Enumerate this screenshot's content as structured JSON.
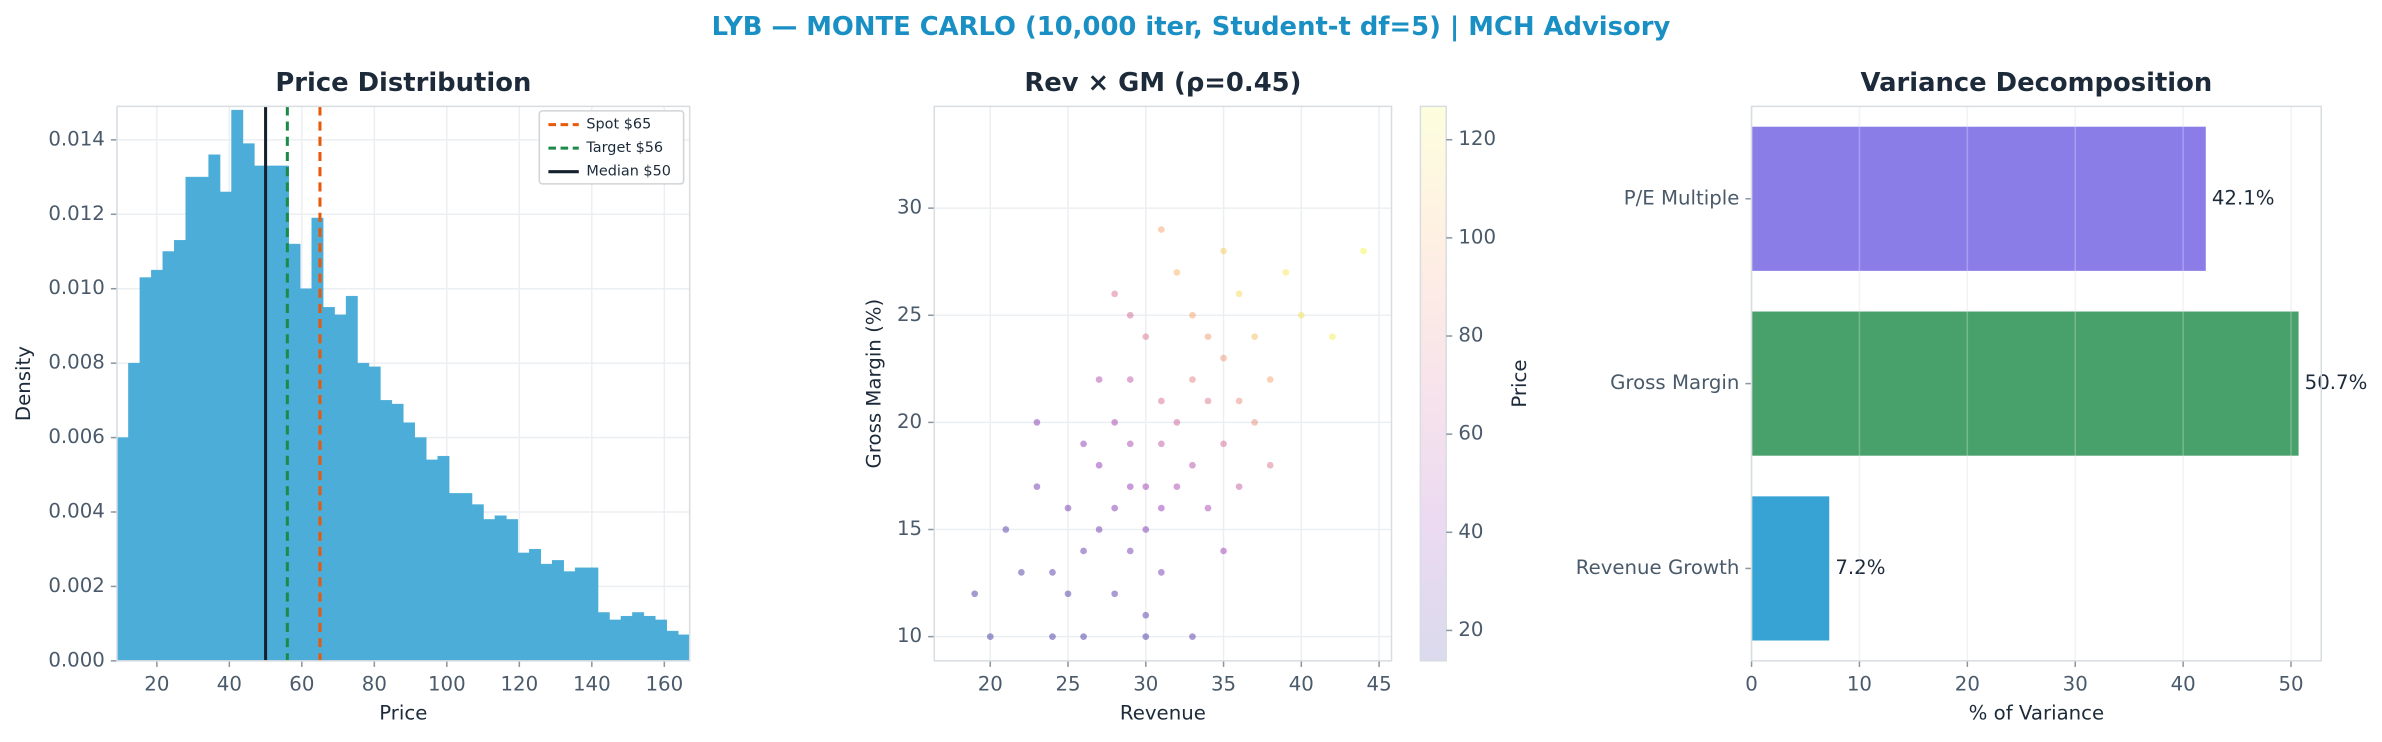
{
  "suptitle": "LYB — MONTE CARLO (10,000 iter, Student-t df=5) | MCH Advisory",
  "chart_data": [
    {
      "type": "histogram",
      "title": "Price Distribution",
      "xlabel": "Price",
      "ylabel": "Density",
      "color": "#4badd8",
      "bins": [
        9,
        12.16,
        15.32,
        18.48,
        21.64,
        24.8,
        27.96,
        31.12,
        34.28,
        37.44,
        40.6,
        43.76,
        46.92,
        50.08,
        53.24,
        56.4,
        59.56,
        62.72,
        65.88,
        69.04,
        72.2,
        75.36,
        78.52,
        81.68,
        84.84,
        88,
        91.16,
        94.32,
        97.48,
        100.64,
        103.8,
        106.96,
        110.12,
        113.28,
        116.44,
        119.6,
        122.76,
        125.92,
        129.08,
        132.24,
        135.4,
        138.56,
        141.72,
        144.88,
        148.04,
        151.2,
        154.36,
        157.52,
        160.68,
        163.84,
        167
      ],
      "values": [
        0.006,
        0.008,
        0.0103,
        0.0105,
        0.011,
        0.0113,
        0.013,
        0.013,
        0.0136,
        0.0126,
        0.0148,
        0.0139,
        0.0133,
        0.0133,
        0.0133,
        0.0112,
        0.01,
        0.0119,
        0.0095,
        0.0093,
        0.0098,
        0.008,
        0.0079,
        0.007,
        0.0069,
        0.0064,
        0.006,
        0.0054,
        0.0055,
        0.0045,
        0.0045,
        0.0042,
        0.0038,
        0.0039,
        0.0038,
        0.0029,
        0.003,
        0.0026,
        0.0027,
        0.0024,
        0.0025,
        0.0025,
        0.0013,
        0.0011,
        0.0012,
        0.0013,
        0.0012,
        0.0011,
        0.0008,
        0.0007
      ],
      "xlim": [
        9,
        167
      ],
      "xticks": [
        20,
        40,
        60,
        80,
        100,
        120,
        140,
        160
      ],
      "ylim": [
        0,
        0.0149
      ],
      "yticks": [
        {
          "value": 0,
          "label": "0.000"
        },
        {
          "value": 0.002,
          "label": "0.002"
        },
        {
          "value": 0.004,
          "label": "0.004"
        },
        {
          "value": 0.006,
          "label": "0.006"
        },
        {
          "value": 0.008,
          "label": "0.008"
        },
        {
          "value": 0.01,
          "label": "0.010"
        },
        {
          "value": 0.012,
          "label": "0.012"
        },
        {
          "value": 0.014,
          "label": "0.014"
        }
      ],
      "grid": true,
      "legend": "upper right",
      "reference_lines": [
        {
          "name": "Spot $65",
          "value": 65,
          "color": "#e8590c",
          "dashed": true
        },
        {
          "name": "Target $56",
          "value": 56,
          "color": "#1e8a4a",
          "dashed": true
        },
        {
          "name": "Median $50",
          "value": 50,
          "color": "#14202e",
          "dashed": false
        }
      ]
    },
    {
      "type": "scatter",
      "title": "Rev × GM (ρ=0.45)",
      "xlabel": "Revenue",
      "ylabel": "Gross Margin (%)",
      "x": [
        30,
        28,
        32,
        35,
        26,
        29,
        33,
        37,
        24,
        31,
        27,
        34,
        30,
        36,
        25,
        29,
        32,
        38,
        28,
        33,
        31,
        26,
        35,
        22,
        39,
        30,
        27,
        34,
        29,
        36,
        23,
        31,
        33,
        40,
        28,
        25,
        32,
        30,
        35,
        21,
        37,
        29,
        27,
        34,
        31,
        26,
        30,
        33,
        20,
        24,
        38,
        42,
        28,
        35,
        23,
        31,
        44,
        19,
        36,
        29
      ],
      "y": [
        17,
        16,
        20,
        23,
        14,
        19,
        18,
        24,
        13,
        21,
        18,
        21,
        15,
        26,
        16,
        22,
        17,
        22,
        12,
        25,
        19,
        19,
        19,
        13,
        27,
        24,
        15,
        16,
        14,
        21,
        17,
        16,
        22,
        25,
        20,
        12,
        27,
        11,
        28,
        15,
        20,
        17,
        22,
        24,
        13,
        10,
        10,
        10,
        10,
        10,
        18,
        24,
        26,
        14,
        20,
        29,
        28,
        12,
        17,
        25
      ],
      "price": [
        45,
        35,
        65,
        90,
        25,
        50,
        55,
        105,
        20,
        70,
        40,
        75,
        35,
        115,
        30,
        60,
        50,
        95,
        22,
        95,
        60,
        38,
        70,
        18,
        120,
        75,
        28,
        50,
        30,
        85,
        28,
        42,
        80,
        118,
        48,
        18,
        100,
        22,
        110,
        20,
        85,
        42,
        52,
        92,
        30,
        15,
        17,
        22,
        14,
        15,
        75,
        122,
        72,
        45,
        35,
        95,
        125,
        15,
        62,
        68
      ],
      "xlim": [
        16.4,
        45.8
      ],
      "xticks": [
        20,
        25,
        30,
        35,
        40,
        45
      ],
      "ylim": [
        8.87,
        34.75
      ],
      "yticks": [
        10,
        15,
        20,
        25,
        30
      ],
      "grid": true,
      "colormap": "plasma",
      "colorbar": {
        "label": "Price",
        "lim": [
          13.8,
          126.8
        ],
        "ticks": [
          20,
          40,
          60,
          80,
          100,
          120
        ]
      }
    },
    {
      "type": "barh",
      "title": "Variance Decomposition",
      "xlabel": "% of Variance",
      "categories": [
        "P/E Multiple",
        "Gross Margin",
        "Revenue Growth"
      ],
      "values": [
        42.1,
        50.7,
        7.2
      ],
      "value_labels": [
        "42.1%",
        "50.7%",
        "7.2%"
      ],
      "colors": [
        "#8b7de8",
        "#48a06a",
        "#36a3d4"
      ],
      "xlim": [
        0,
        52.8
      ],
      "xticks": [
        0,
        10,
        20,
        30,
        40,
        50
      ],
      "grid": true
    }
  ]
}
